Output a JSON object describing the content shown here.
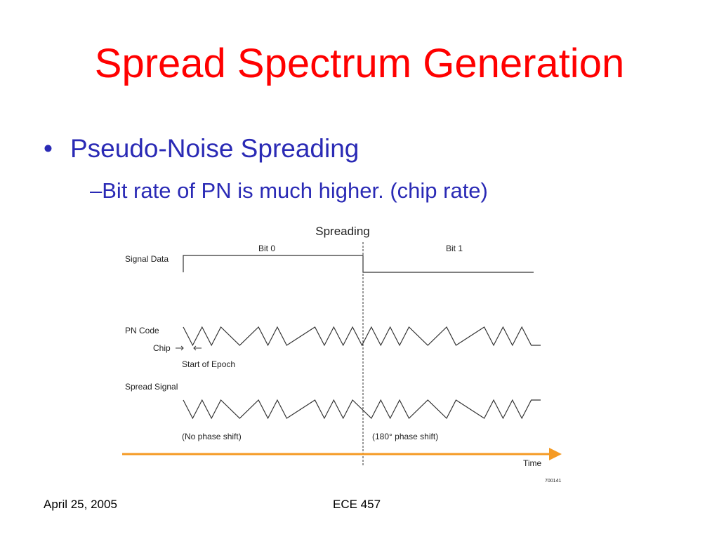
{
  "slide": {
    "title": "Spread Spectrum Generation",
    "bullet": "Pseudo-Noise Spreading",
    "sub_bullet": "Bit rate of PN is much higher. (chip rate)",
    "bullet_marker": "•",
    "sub_marker": "–"
  },
  "diagram": {
    "title": "Spreading",
    "bit0": "Bit 0",
    "bit1": "Bit 1",
    "signal_data": "Signal Data",
    "pn_code": "PN Code",
    "chip": "Chip",
    "start_epoch": "Start of Epoch",
    "spread_signal": "Spread Signal",
    "no_shift": "(No phase shift)",
    "phase_shift": "(180° phase shift)",
    "time": "Time",
    "figure_id": "700141",
    "arrow_color": "#f59a23",
    "signal_bits": [
      1,
      0
    ],
    "pn_chips": [
      1,
      0,
      1,
      0,
      1,
      1,
      0,
      0,
      1,
      0,
      1,
      0,
      0,
      0,
      1,
      0,
      1,
      0,
      1,
      0,
      1,
      0,
      1,
      0,
      1,
      1,
      0,
      0,
      1,
      0,
      0,
      0,
      1,
      0,
      1,
      0,
      1,
      0
    ]
  },
  "footer": {
    "date": "April 25, 2005",
    "course": "ECE 457"
  }
}
